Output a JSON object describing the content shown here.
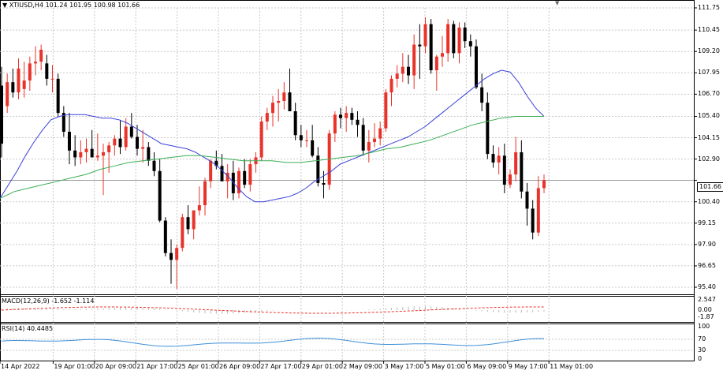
{
  "header": {
    "symbol_info": "XTIUSD,H4  101.24 101.95 100.98 101.66"
  },
  "price_axis": {
    "labels": [
      "111.75",
      "110.45",
      "109.20",
      "107.95",
      "106.70",
      "105.40",
      "104.15",
      "102.90",
      "101.66",
      "100.40",
      "99.15",
      "97.90",
      "96.65",
      "95.40"
    ],
    "current": "101.66"
  },
  "macd": {
    "label": "MACD(12,26,9) -1.652 -1.114",
    "axis": [
      "2.547",
      "0.00",
      "-1.87"
    ]
  },
  "rsi": {
    "label": "RSI(14) 40.4485",
    "axis": [
      "100",
      "70",
      "30",
      "0"
    ]
  },
  "time_axis": [
    "14 Apr 2022",
    "19 Apr 01:00",
    "20 Apr 09:00",
    "21 Apr 17:00",
    "25 Apr 01:00",
    "26 Apr 09:00",
    "27 Apr 17:00",
    "29 Apr 01:00",
    "2 May 09:00",
    "3 May 17:00",
    "5 May 01:00",
    "6 May 09:00",
    "9 May 17:00",
    "11 May 01:00"
  ],
  "colors": {
    "bull": "#e8332a",
    "bear": "#000000",
    "ma_fast": "#3b42d8",
    "ma_slow": "#3aae55",
    "macd": "#e8332a",
    "rsi": "#3f8fd8",
    "grid": "#c8c8c8"
  },
  "chart_data": [
    {
      "type": "candlestick",
      "title": "XTIUSD,H4",
      "ylim": [
        95.4,
        111.75
      ],
      "ohlc": [
        [
          107.2,
          108.3,
          103.0,
          103.8
        ],
        [
          106.0,
          107.9,
          105.6,
          107.4
        ],
        [
          107.4,
          108.2,
          106.5,
          106.8
        ],
        [
          106.8,
          108.8,
          106.4,
          108.2
        ],
        [
          107.0,
          108.6,
          106.5,
          107.5
        ],
        [
          107.5,
          108.9,
          106.9,
          108.5
        ],
        [
          108.5,
          109.5,
          107.8,
          108.6
        ],
        [
          108.6,
          109.6,
          108.1,
          109.3
        ],
        [
          108.5,
          109.0,
          107.2,
          107.6
        ],
        [
          107.6,
          108.4,
          106.8,
          107.6
        ],
        [
          107.6,
          107.9,
          105.4,
          105.6
        ],
        [
          105.6,
          106.0,
          104.2,
          104.5
        ],
        [
          104.5,
          105.6,
          102.6,
          103.4
        ],
        [
          103.4,
          104.3,
          102.5,
          103.0
        ],
        [
          103.0,
          104.0,
          102.6,
          103.3
        ],
        [
          103.3,
          104.1,
          102.7,
          103.5
        ],
        [
          103.5,
          104.6,
          103.0,
          103.0
        ],
        [
          103.0,
          104.4,
          102.8,
          103.1
        ],
        [
          103.1,
          103.8,
          100.8,
          103.3
        ],
        [
          103.3,
          103.9,
          102.1,
          103.7
        ],
        [
          103.7,
          104.3,
          103.1,
          104.1
        ],
        [
          104.1,
          105.2,
          103.2,
          103.6
        ],
        [
          103.6,
          105.3,
          103.4,
          104.8
        ],
        [
          104.8,
          105.6,
          104.1,
          104.2
        ],
        [
          104.2,
          104.9,
          103.1,
          103.5
        ],
        [
          103.5,
          104.6,
          102.7,
          103.6
        ],
        [
          103.6,
          103.9,
          102.5,
          102.8
        ],
        [
          102.8,
          103.3,
          101.9,
          102.2
        ],
        [
          102.2,
          102.9,
          99.2,
          99.3
        ],
        [
          99.3,
          99.5,
          97.2,
          97.4
        ],
        [
          97.4,
          98.2,
          95.6,
          97.0
        ],
        [
          97.0,
          97.9,
          95.3,
          97.7
        ],
        [
          97.7,
          99.7,
          97.5,
          99.5
        ],
        [
          99.5,
          100.2,
          98.5,
          98.8
        ],
        [
          98.8,
          99.9,
          98.2,
          99.9
        ],
        [
          99.9,
          101.3,
          99.6,
          100.2
        ],
        [
          100.2,
          101.8,
          99.6,
          101.6
        ],
        [
          101.6,
          102.9,
          101.2,
          102.8
        ],
        [
          102.8,
          103.4,
          102.3,
          102.5
        ],
        [
          102.5,
          103.2,
          101.6,
          101.6
        ],
        [
          101.6,
          102.6,
          100.6,
          102.1
        ],
        [
          102.1,
          102.8,
          100.5,
          100.9
        ],
        [
          100.9,
          102.4,
          100.6,
          102.2
        ],
        [
          102.2,
          102.9,
          101.2,
          101.4
        ],
        [
          101.4,
          102.9,
          101.0,
          102.6
        ],
        [
          102.6,
          103.3,
          102.1,
          103.0
        ],
        [
          103.0,
          105.4,
          102.8,
          105.1
        ],
        [
          105.1,
          105.9,
          104.6,
          105.6
        ],
        [
          105.6,
          106.6,
          104.8,
          106.2
        ],
        [
          106.2,
          107.0,
          105.1,
          106.3
        ],
        [
          106.3,
          107.4,
          105.8,
          106.8
        ],
        [
          106.8,
          108.2,
          105.7,
          105.7
        ],
        [
          105.7,
          106.2,
          104.0,
          104.3
        ],
        [
          104.3,
          104.9,
          103.6,
          104.0
        ],
        [
          104.0,
          104.6,
          103.6,
          104.0
        ],
        [
          104.0,
          104.9,
          103.0,
          103.1
        ],
        [
          103.1,
          103.6,
          101.3,
          101.5
        ],
        [
          101.5,
          102.2,
          100.6,
          101.4
        ],
        [
          101.4,
          104.6,
          101.1,
          104.4
        ],
        [
          104.4,
          105.7,
          103.9,
          105.5
        ],
        [
          105.5,
          105.9,
          104.7,
          105.3
        ],
        [
          105.3,
          106.0,
          104.5,
          105.6
        ],
        [
          105.6,
          105.9,
          104.9,
          105.2
        ],
        [
          105.2,
          105.7,
          104.2,
          104.9
        ],
        [
          104.9,
          105.3,
          103.1,
          103.4
        ],
        [
          103.4,
          104.6,
          102.7,
          103.9
        ],
        [
          103.9,
          105.0,
          103.6,
          104.1
        ],
        [
          104.1,
          105.1,
          103.7,
          104.7
        ],
        [
          104.7,
          107.0,
          104.5,
          106.8
        ],
        [
          106.8,
          107.8,
          106.0,
          107.6
        ],
        [
          107.6,
          108.4,
          107.1,
          107.9
        ],
        [
          107.9,
          109.1,
          107.4,
          108.3
        ],
        [
          108.3,
          109.0,
          107.3,
          107.8
        ],
        [
          107.8,
          110.2,
          107.0,
          109.6
        ],
        [
          109.6,
          110.8,
          107.6,
          109.5
        ],
        [
          109.5,
          111.2,
          109.1,
          110.8
        ],
        [
          110.8,
          111.1,
          107.9,
          108.1
        ],
        [
          108.1,
          109.0,
          106.9,
          108.9
        ],
        [
          108.9,
          110.1,
          108.3,
          109.1
        ],
        [
          109.1,
          111.1,
          108.6,
          110.8
        ],
        [
          110.8,
          111.0,
          108.8,
          109.1
        ],
        [
          109.1,
          110.9,
          108.5,
          110.6
        ],
        [
          110.6,
          110.9,
          109.4,
          109.8
        ],
        [
          109.8,
          110.2,
          108.9,
          109.5
        ],
        [
          109.5,
          109.9,
          107.0,
          107.1
        ],
        [
          107.1,
          107.9,
          105.7,
          106.2
        ],
        [
          106.2,
          106.8,
          102.9,
          103.2
        ],
        [
          103.2,
          103.7,
          102.4,
          102.7
        ],
        [
          102.7,
          103.6,
          102.0,
          103.1
        ],
        [
          103.1,
          103.8,
          100.9,
          101.4
        ],
        [
          101.4,
          102.3,
          101.2,
          102.0
        ],
        [
          102.0,
          104.2,
          101.6,
          103.3
        ],
        [
          103.3,
          104.0,
          100.6,
          101.0
        ],
        [
          101.0,
          101.5,
          99.0,
          100.0
        ],
        [
          100.0,
          100.5,
          98.2,
          98.6
        ],
        [
          98.6,
          101.9,
          98.4,
          101.2
        ],
        [
          101.2,
          102.0,
          100.9,
          101.66
        ]
      ],
      "series": [
        {
          "name": "MA fast",
          "values": [
            100.6,
            101.4,
            102.2,
            103.1,
            103.9,
            104.6,
            105.2,
            105.4,
            105.5,
            105.5,
            105.5,
            105.4,
            105.3,
            105.3,
            105.2,
            105.0,
            104.7,
            104.4,
            104.1,
            103.8,
            103.7,
            103.6,
            103.5,
            103.3,
            103.0,
            102.7,
            102.3,
            101.8,
            101.2,
            100.7,
            100.4,
            100.4,
            100.5,
            100.6,
            100.7,
            100.9,
            101.2,
            101.6,
            101.9,
            102.2,
            102.6,
            102.8,
            103.0,
            103.2,
            103.4,
            103.6,
            103.8,
            104.0,
            104.2,
            104.5,
            104.8,
            105.2,
            105.6,
            106.0,
            106.4,
            106.8,
            107.2,
            107.6,
            107.9,
            108.1,
            108.0,
            107.4,
            106.6,
            105.9,
            105.4
          ]
        },
        {
          "name": "MA slow",
          "values": [
            100.6,
            101.0,
            101.2,
            101.4,
            101.6,
            101.8,
            102.0,
            102.3,
            102.5,
            102.7,
            102.8,
            102.9,
            103.0,
            103.1,
            103.1,
            103.0,
            102.9,
            102.8,
            102.8,
            102.8,
            102.7,
            102.7,
            102.8,
            102.9,
            103.0,
            103.1,
            103.3,
            103.5,
            103.6,
            103.8,
            104.0,
            104.3,
            104.6,
            104.9,
            105.1,
            105.3,
            105.4,
            105.4,
            105.4
          ]
        }
      ]
    },
    {
      "type": "bar",
      "title": "MACD(12,26,9) -1.652 -1.114",
      "ylim": [
        -1.87,
        2.547
      ]
    },
    {
      "type": "line",
      "title": "RSI(14) 40.4485",
      "ylim": [
        0,
        100
      ]
    }
  ]
}
